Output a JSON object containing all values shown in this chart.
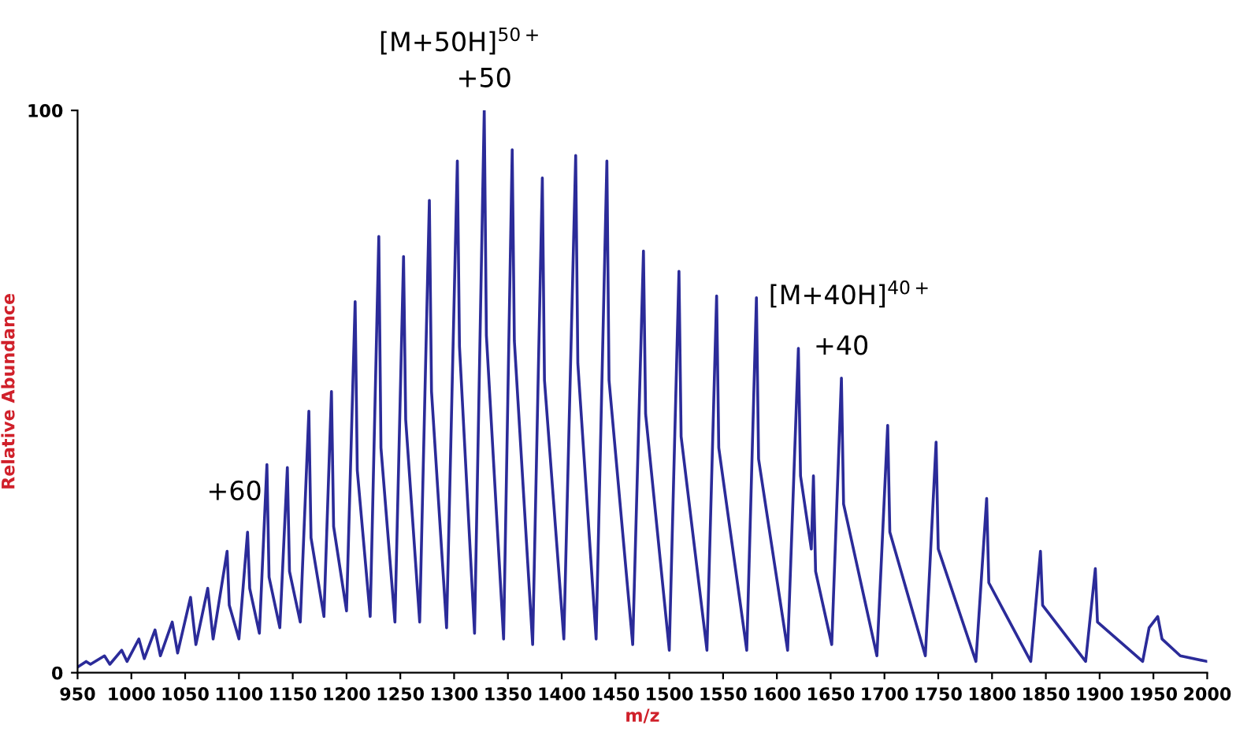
{
  "chart_data": {
    "type": "line",
    "xlabel": "m/z",
    "ylabel": "Relative Abundance",
    "xlim": [
      950,
      2000
    ],
    "ylim": [
      0,
      100
    ],
    "xticks": [
      950,
      1000,
      1050,
      1100,
      1150,
      1200,
      1250,
      1300,
      1350,
      1400,
      1450,
      1500,
      1550,
      1600,
      1650,
      1700,
      1750,
      1800,
      1850,
      1900,
      1950,
      2000
    ],
    "yticks": [
      0,
      100
    ],
    "grid": false,
    "marker": "none",
    "line_style": "solid",
    "series": [
      {
        "color": "#2b2b99",
        "x": [
          950,
          958,
          962,
          975,
          980,
          991,
          996,
          1007,
          1012,
          1022,
          1027,
          1038,
          1043,
          1055,
          1060,
          1071,
          1076,
          1089,
          1091,
          1100,
          1108,
          1110,
          1119,
          1126,
          1128,
          1138,
          1145,
          1147,
          1157,
          1165,
          1167,
          1179,
          1186,
          1188,
          1200,
          1208,
          1210,
          1222,
          1230,
          1232,
          1245,
          1253,
          1255,
          1268,
          1277,
          1279,
          1293,
          1303,
          1305,
          1319,
          1328,
          1330,
          1346,
          1354,
          1356,
          1373,
          1382,
          1384,
          1402,
          1413,
          1415,
          1432,
          1442,
          1444,
          1466,
          1476,
          1478,
          1500,
          1509,
          1511,
          1535,
          1544,
          1546,
          1572,
          1581,
          1583,
          1610,
          1620,
          1622,
          1632,
          1634,
          1636,
          1651,
          1660,
          1662,
          1693,
          1703,
          1705,
          1738,
          1748,
          1750,
          1785,
          1795,
          1797,
          1836,
          1845,
          1847,
          1887,
          1896,
          1898,
          1940,
          1946,
          1954,
          1958,
          1975,
          2000
        ],
        "values": [
          1,
          2,
          1.5,
          3,
          1.5,
          4,
          2,
          6,
          2.5,
          7.6,
          3,
          9,
          3.5,
          13.4,
          5,
          15,
          6,
          21.6,
          12,
          6,
          25,
          15,
          7,
          37,
          17,
          8,
          36.5,
          18,
          9,
          46.5,
          24,
          10,
          50,
          26,
          11,
          66,
          36,
          10,
          77.6,
          40,
          9,
          74,
          45,
          9,
          84,
          50,
          8,
          91,
          58,
          7,
          100,
          60,
          6,
          93,
          59,
          5,
          88,
          52,
          6,
          92,
          55,
          6,
          91,
          52,
          5,
          75,
          46,
          4,
          71.4,
          42,
          4,
          67,
          40,
          4,
          66.7,
          38,
          4,
          57.7,
          35,
          22,
          35,
          18,
          5,
          52.4,
          30,
          3,
          44,
          25,
          3,
          41,
          22,
          2,
          31,
          16,
          2,
          21.6,
          12,
          2,
          18.5,
          9,
          2,
          8,
          10,
          6,
          3,
          2
        ]
      }
    ],
    "annotations": [
      "[M+50H]$^{50+}$",
      {
        "text": "+50",
        "x": 1328,
        "y": 100
      },
      {
        "text": "+60",
        "x": 1108,
        "y": 25
      },
      "[M+40H]$^{40+}$",
      {
        "text": "+40",
        "x": 1660,
        "y": 52.4
      }
    ]
  }
}
